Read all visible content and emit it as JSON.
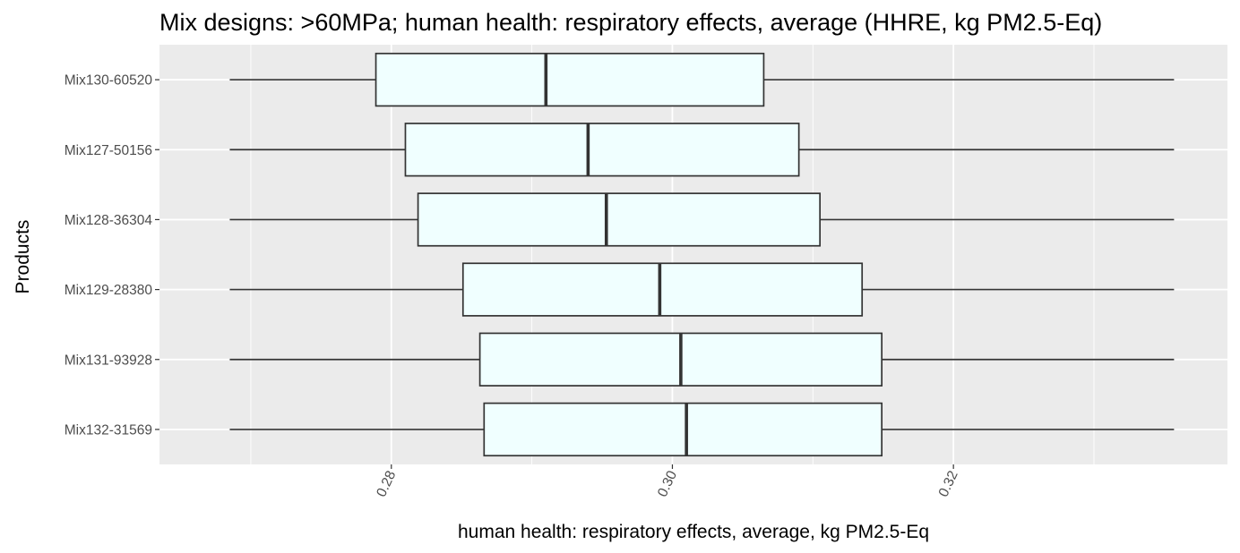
{
  "chart_data": {
    "type": "boxplot",
    "orientation": "horizontal",
    "title": "Mix designs: >60MPa; human health: respiratory effects, average (HHRE, kg PM2.5-Eq)",
    "xlabel": "human health: respiratory effects, average, kg PM2.5-Eq",
    "ylabel": "Products",
    "xlim": [
      0.2635,
      0.3395
    ],
    "x_ticks": [
      0.28,
      0.3,
      0.32
    ],
    "x_tick_labels": [
      "0.28",
      "0.30",
      "0.32"
    ],
    "grid": true,
    "box_fill": "#F0FFFF",
    "categories": [
      "Mix130-60520",
      "Mix127-50156",
      "Mix128-36304",
      "Mix129-28380",
      "Mix131-93928",
      "Mix132-31569"
    ],
    "boxes": [
      {
        "category": "Mix130-60520",
        "min": 0.2685,
        "q1": 0.2789,
        "median": 0.291,
        "q3": 0.3065,
        "max": 0.3357
      },
      {
        "category": "Mix127-50156",
        "min": 0.2685,
        "q1": 0.281,
        "median": 0.294,
        "q3": 0.309,
        "max": 0.3357
      },
      {
        "category": "Mix128-36304",
        "min": 0.2685,
        "q1": 0.2819,
        "median": 0.2953,
        "q3": 0.3105,
        "max": 0.3357
      },
      {
        "category": "Mix129-28380",
        "min": 0.2685,
        "q1": 0.2851,
        "median": 0.2991,
        "q3": 0.3135,
        "max": 0.3357
      },
      {
        "category": "Mix131-93928",
        "min": 0.2685,
        "q1": 0.2863,
        "median": 0.3006,
        "q3": 0.3149,
        "max": 0.3357
      },
      {
        "category": "Mix132-31569",
        "min": 0.2685,
        "q1": 0.2866,
        "median": 0.301,
        "q3": 0.3149,
        "max": 0.3357
      }
    ]
  }
}
